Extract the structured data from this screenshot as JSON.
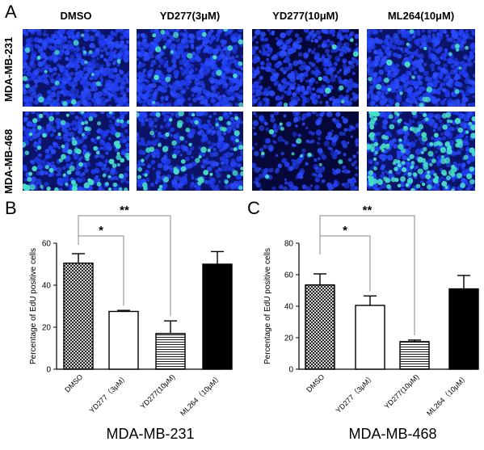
{
  "panelA": {
    "letter": "A",
    "column_headers": [
      "DMSO",
      "YD277(3μM)",
      "YD277(10μM)",
      "ML264(10μM)"
    ],
    "row_headers": [
      "MDA-MB-231",
      "MDA-MB-468"
    ]
  },
  "panelB": {
    "letter": "B",
    "caption": "MDA-MB-231"
  },
  "panelC": {
    "letter": "C",
    "caption": "MDA-MB-468"
  },
  "colors": {
    "dapi": "#1a2fd6",
    "edu": "#46e0c8",
    "background": "#ffffff"
  },
  "chart_data": [
    {
      "type": "bar",
      "panel": "B",
      "ylabel": "Percentage of EdU positive cells",
      "categories": [
        "DMSO",
        "YD277（3μM）",
        "YD277(10μM)",
        "ML264（10μM）"
      ],
      "values": [
        50.5,
        27.5,
        17,
        50
      ],
      "errors": [
        4.5,
        0.5,
        6,
        6
      ],
      "fills": [
        "crosshatch",
        "white",
        "horizontal-lines",
        "black"
      ],
      "ylim": [
        0,
        60
      ],
      "yticks": [
        0,
        20,
        40,
        60
      ],
      "significance": [
        {
          "from": 0,
          "to": 1,
          "label": "*"
        },
        {
          "from": 0,
          "to": 2,
          "label": "**"
        }
      ]
    },
    {
      "type": "bar",
      "panel": "C",
      "ylabel": "Percentage of EdU positive cells",
      "categories": [
        "DMSO",
        "YD277（3μM）",
        "YD277(10μM)",
        "ML264（10μM）"
      ],
      "values": [
        53.5,
        40.5,
        17.5,
        51
      ],
      "errors": [
        7,
        6,
        1,
        8.5
      ],
      "fills": [
        "crosshatch",
        "white",
        "horizontal-lines",
        "black"
      ],
      "ylim": [
        0,
        80
      ],
      "yticks": [
        0,
        20,
        40,
        60,
        80
      ],
      "significance": [
        {
          "from": 0,
          "to": 1,
          "label": "*"
        },
        {
          "from": 0,
          "to": 2,
          "label": "**"
        }
      ]
    }
  ]
}
